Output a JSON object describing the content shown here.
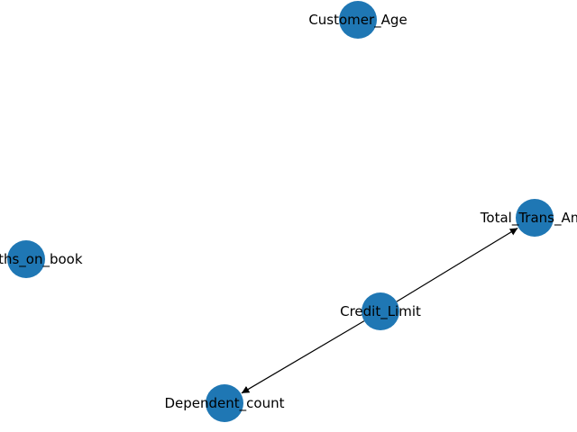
{
  "graph": {
    "node_color": "#1f77b4",
    "edge_color": "#000000",
    "directed": true,
    "nodes": [
      {
        "id": "customer_age",
        "label": "Customer_Age"
      },
      {
        "id": "total_trans_amt",
        "label": "Total_Trans_Amt"
      },
      {
        "id": "months_on_book",
        "label": "Months_on_book"
      },
      {
        "id": "credit_limit",
        "label": "Credit_Limit"
      },
      {
        "id": "dependent_count",
        "label": "Dependent_count"
      }
    ],
    "edges": [
      {
        "source": "credit_limit",
        "target": "total_trans_amt"
      },
      {
        "source": "credit_limit",
        "target": "dependent_count"
      }
    ]
  }
}
